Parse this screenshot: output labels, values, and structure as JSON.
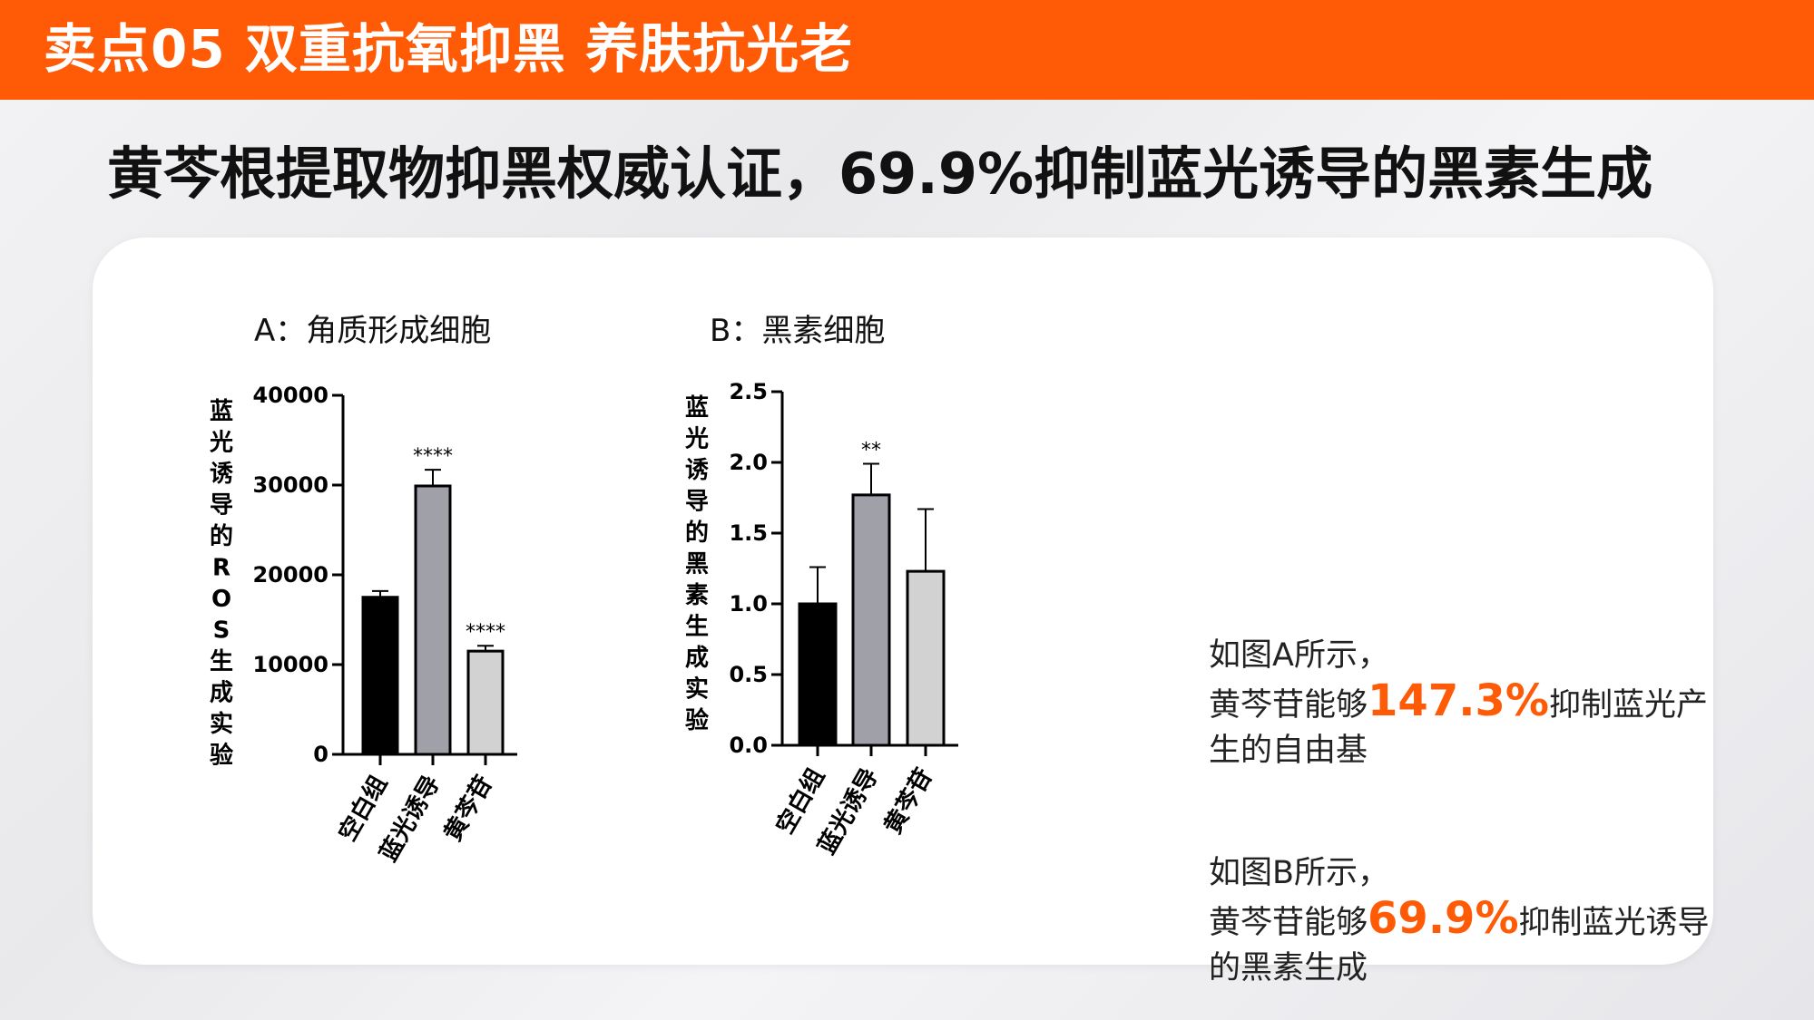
{
  "header": {
    "title": "卖点05 双重抗氧抑黑 养肤抗光老"
  },
  "headline": "黄芩根提取物抑黑权威认证，69.9%抑制蓝光诱导的黑素生成",
  "colors": {
    "accent": "#ff5a05",
    "bar_blank": "#000000",
    "bar_induced": "#a0a0a8",
    "bar_treated": "#d2d2d2"
  },
  "chart_data": [
    {
      "type": "bar",
      "title": "A：角质形成细胞",
      "ylabel": "蓝光诱导的ROS生成实验",
      "categories": [
        "空白组",
        "蓝光诱导",
        "黄芩苷"
      ],
      "values": [
        17500,
        29900,
        11500
      ],
      "errors": [
        700,
        1800,
        600
      ],
      "significance": [
        "",
        "****",
        "****"
      ],
      "ylim": [
        0,
        40000
      ],
      "yticks": [
        "0",
        "10000",
        "20000",
        "30000",
        "40000"
      ]
    },
    {
      "type": "bar",
      "title": "B：黑素细胞",
      "ylabel": "蓝光诱导的黑素生成实验",
      "categories": [
        "空白组",
        "蓝光诱导",
        "黄芩苷"
      ],
      "values": [
        1.0,
        1.77,
        1.23
      ],
      "errors": [
        0.26,
        0.22,
        0.44
      ],
      "significance": [
        "",
        "**",
        ""
      ],
      "ylim": [
        0,
        2.5
      ],
      "yticks": [
        "0.0",
        "0.5",
        "1.0",
        "1.5",
        "2.0",
        "2.5"
      ]
    }
  ],
  "descriptions": [
    {
      "line1": "如图A所示，",
      "pre": "黄芩苷能够",
      "highlight": "147.3%",
      "post": "抑制蓝光产生的自由基"
    },
    {
      "line1": "如图B所示，",
      "pre": "黄芩苷能够",
      "highlight": "69.9%",
      "post": "抑制蓝光诱导的黑素生成"
    }
  ]
}
